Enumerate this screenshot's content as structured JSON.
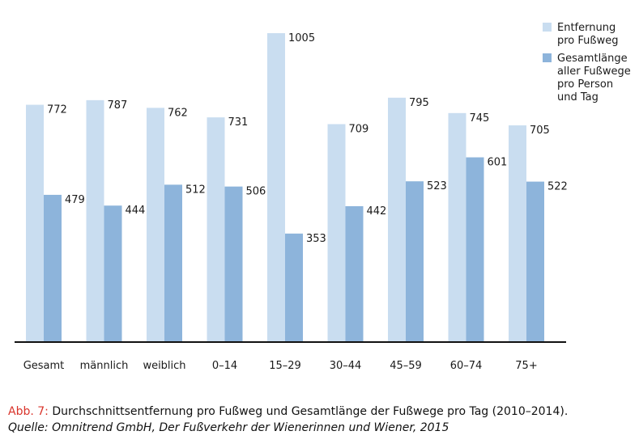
{
  "chart_data": {
    "type": "bar",
    "categories": [
      "Gesamt",
      "männlich",
      "weiblich",
      "0–14",
      "15–29",
      "30–44",
      "45–59",
      "60–74",
      "75+"
    ],
    "series": [
      {
        "name_lines": [
          "Entfernung",
          "pro Fußweg"
        ],
        "color": "#c9ddf0",
        "values": [
          772,
          787,
          762,
          731,
          1005,
          709,
          795,
          745,
          705
        ]
      },
      {
        "name_lines": [
          "Gesamtlänge",
          "aller Fußwege",
          "pro Person",
          "und Tag"
        ],
        "color": "#8db4db",
        "values": [
          479,
          444,
          512,
          506,
          353,
          442,
          523,
          601,
          522
        ]
      }
    ],
    "ylim": [
      0,
      1005
    ],
    "grid": false,
    "legend": "top-right"
  },
  "caption": {
    "prefix": "Abb. 7: ",
    "title": "Durchschnittsentfernung pro Fußweg und Gesamtlänge der Fußwege pro Tag (2010–2014).",
    "source": "Quelle: Omnitrend GmbH, Der Fußverkehr der Wienerinnen und Wiener, 2015"
  }
}
